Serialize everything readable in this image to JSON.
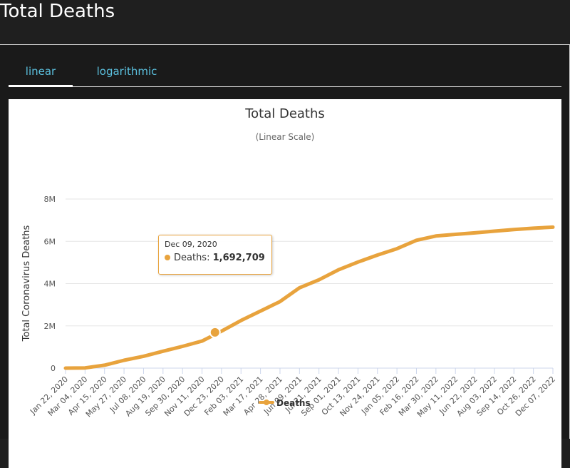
{
  "page": {
    "heading": "Total Deaths"
  },
  "tabs": [
    {
      "label": "linear",
      "active": true
    },
    {
      "label": "logarithmic",
      "active": false
    }
  ],
  "tooltip": {
    "date": "Dec 09, 2020",
    "series_label": "Deaths:",
    "value": "1,692,709"
  },
  "colors": {
    "series": "#e8a33d",
    "tab_text": "#5bc0de",
    "background": "#1f1f1f"
  },
  "chart_data": {
    "type": "line",
    "title": "Total Deaths",
    "subtitle": "(Linear Scale)",
    "ylabel": "Total Coronavirus Deaths",
    "xlabel": "",
    "ylim": [
      0,
      8000000
    ],
    "yticks": [
      0,
      2000000,
      4000000,
      6000000,
      8000000
    ],
    "ytick_labels": [
      "0",
      "2M",
      "4M",
      "6M",
      "8M"
    ],
    "grid": true,
    "legend": "bottom-center",
    "x_labels": [
      "Jan 22, 2020",
      "Mar 04, 2020",
      "Apr 15, 2020",
      "May 27, 2020",
      "Jul 08, 2020",
      "Aug 19, 2020",
      "Sep 30, 2020",
      "Nov 11, 2020",
      "Dec 23, 2020",
      "Feb 03, 2021",
      "Mar 17, 2021",
      "Apr 28, 2021",
      "Jun 09, 2021",
      "Jul 21, 2021",
      "Sep 01, 2021",
      "Oct 13, 2021",
      "Nov 24, 2021",
      "Jan 05, 2022",
      "Feb 16, 2022",
      "Mar 30, 2022",
      "May 11, 2022",
      "Jun 22, 2022",
      "Aug 03, 2022",
      "Sep 14, 2022",
      "Oct 26, 2022",
      "Dec 07, 2022"
    ],
    "series": [
      {
        "name": "Deaths",
        "values": [
          20,
          10000,
          140000,
          370000,
          560000,
          800000,
          1030000,
          1280000,
          1750000,
          2250000,
          2700000,
          3150000,
          3800000,
          4180000,
          4650000,
          5020000,
          5350000,
          5650000,
          6050000,
          6250000,
          6330000,
          6400000,
          6480000,
          6560000,
          6620000,
          6670000
        ]
      }
    ],
    "highlight": {
      "date": "Dec 09, 2020",
      "value": 1692709
    }
  }
}
